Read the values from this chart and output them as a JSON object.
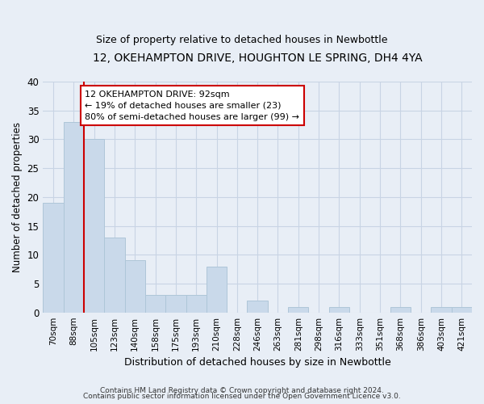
{
  "title": "12, OKEHAMPTON DRIVE, HOUGHTON LE SPRING, DH4 4YA",
  "subtitle": "Size of property relative to detached houses in Newbottle",
  "xlabel": "Distribution of detached houses by size in Newbottle",
  "ylabel": "Number of detached properties",
  "categories": [
    "70sqm",
    "88sqm",
    "105sqm",
    "123sqm",
    "140sqm",
    "158sqm",
    "175sqm",
    "193sqm",
    "210sqm",
    "228sqm",
    "246sqm",
    "263sqm",
    "281sqm",
    "298sqm",
    "316sqm",
    "333sqm",
    "351sqm",
    "368sqm",
    "386sqm",
    "403sqm",
    "421sqm"
  ],
  "values": [
    19,
    33,
    30,
    13,
    9,
    3,
    3,
    3,
    8,
    0,
    2,
    0,
    1,
    0,
    1,
    0,
    0,
    1,
    0,
    1,
    1
  ],
  "bar_color": "#c9d9ea",
  "bar_edge_color": "#aec6d8",
  "grid_color": "#c8d4e4",
  "bg_color": "#e8eef6",
  "red_line_x": 1.5,
  "annotation_text": "12 OKEHAMPTON DRIVE: 92sqm\n← 19% of detached houses are smaller (23)\n80% of semi-detached houses are larger (99) →",
  "annotation_box_color": "#ffffff",
  "annotation_box_edge": "#cc0000",
  "footer1": "Contains HM Land Registry data © Crown copyright and database right 2024.",
  "footer2": "Contains public sector information licensed under the Open Government Licence v3.0.",
  "ylim": [
    0,
    40
  ],
  "yticks": [
    0,
    5,
    10,
    15,
    20,
    25,
    30,
    35,
    40
  ]
}
